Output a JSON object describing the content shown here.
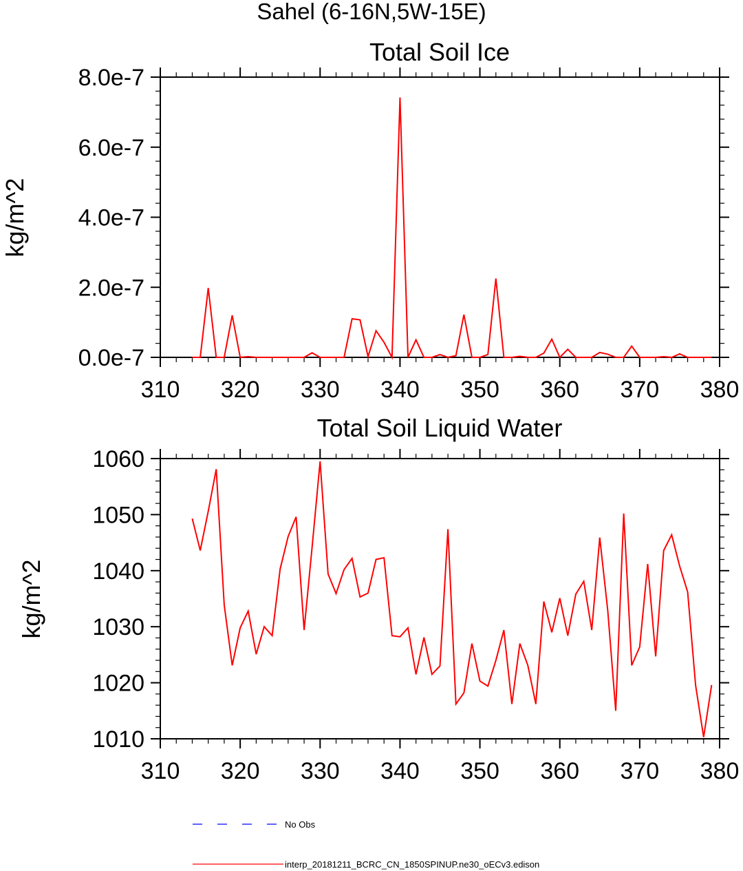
{
  "figure_title": "Sahel (6-16N,5W-15E)",
  "legend": [
    {
      "label": "No Obs",
      "color": "#0000ff",
      "style": "dashed"
    },
    {
      "label": "interp_20181211_BCRC_CN_1850SPINUP.ne30_oECv3.edison",
      "color": "#ff0000",
      "style": "solid"
    }
  ],
  "chart_data": [
    {
      "type": "line",
      "title": "Total Soil Ice",
      "xlabel": "",
      "ylabel": "kg/m^2",
      "xlim": [
        310,
        380
      ],
      "ylim": [
        0,
        8e-07
      ],
      "x_ticks": [
        310,
        320,
        330,
        340,
        350,
        360,
        370,
        380
      ],
      "x_tick_labels": [
        "310",
        "320",
        "330",
        "340",
        "350",
        "360",
        "370",
        "380"
      ],
      "y_ticks": [
        0,
        2e-07,
        4e-07,
        6e-07,
        8e-07
      ],
      "y_tick_labels": [
        "0.0e-7",
        "2.0e-7",
        "4.0e-7",
        "6.0e-7",
        "8.0e-7"
      ],
      "grid": false,
      "series": [
        {
          "color": "#ff0000",
          "x": [
            314,
            315,
            316,
            317,
            318,
            319,
            320,
            321,
            322,
            323,
            324,
            325,
            326,
            327,
            328,
            329,
            330,
            331,
            332,
            333,
            334,
            335,
            336,
            337,
            338,
            339,
            340,
            341,
            342,
            343,
            344,
            345,
            346,
            347,
            348,
            349,
            350,
            351,
            352,
            353,
            354,
            355,
            356,
            357,
            358,
            359,
            360,
            361,
            362,
            363,
            364,
            365,
            366,
            367,
            368,
            369,
            370,
            371,
            372,
            373,
            374,
            375,
            376,
            377,
            378,
            379
          ],
          "y": [
            0,
            0,
            1.98e-07,
            0,
            0,
            1.2e-07,
            0,
            2e-09,
            0,
            0,
            0,
            0,
            0,
            0,
            0,
            1.3e-08,
            0,
            0,
            0,
            0,
            1.1e-07,
            1.07e-07,
            2e-09,
            7.6e-08,
            4.3e-08,
            0,
            7.42e-07,
            0,
            5e-08,
            0,
            0,
            8e-09,
            0,
            5e-09,
            1.22e-07,
            0,
            0,
            8e-09,
            2.25e-07,
            0,
            0,
            3e-09,
            0,
            0,
            1.2e-08,
            5.2e-08,
            0,
            2.3e-08,
            0,
            0,
            0,
            1.4e-08,
            9e-09,
            0,
            0,
            3.2e-08,
            0,
            0,
            0,
            2e-09,
            0,
            1e-08,
            0,
            0,
            0,
            0
          ]
        }
      ]
    },
    {
      "type": "line",
      "title": "Total Soil Liquid Water",
      "xlabel": "",
      "ylabel": "kg/m^2",
      "xlim": [
        310,
        380
      ],
      "ylim": [
        1010,
        1060
      ],
      "x_ticks": [
        310,
        320,
        330,
        340,
        350,
        360,
        370,
        380
      ],
      "x_tick_labels": [
        "310",
        "320",
        "330",
        "340",
        "350",
        "360",
        "370",
        "380"
      ],
      "y_ticks": [
        1010,
        1020,
        1030,
        1040,
        1050,
        1060
      ],
      "y_tick_labels": [
        "1010",
        "1020",
        "1030",
        "1040",
        "1050",
        "1060"
      ],
      "grid": false,
      "series": [
        {
          "color": "#ff0000",
          "x": [
            314,
            315,
            316,
            317,
            318,
            319,
            320,
            321,
            322,
            323,
            324,
            325,
            326,
            327,
            328,
            329,
            330,
            331,
            332,
            333,
            334,
            335,
            336,
            337,
            338,
            339,
            340,
            341,
            342,
            343,
            344,
            345,
            346,
            347,
            348,
            349,
            350,
            351,
            352,
            353,
            354,
            355,
            356,
            357,
            358,
            359,
            360,
            361,
            362,
            363,
            364,
            365,
            366,
            367,
            368,
            369,
            370,
            371,
            372,
            373,
            374,
            375,
            376,
            377,
            378,
            379
          ],
          "y": [
            1049.3,
            1043.6,
            1050.6,
            1058.1,
            1033.9,
            1023.1,
            1029.8,
            1032.8,
            1025.1,
            1030.0,
            1028.4,
            1040.3,
            1046.1,
            1049.6,
            1029.4,
            1044.2,
            1059.5,
            1039.4,
            1035.9,
            1040.2,
            1042.2,
            1035.3,
            1036.0,
            1042.0,
            1042.3,
            1028.4,
            1028.2,
            1029.8,
            1021.5,
            1028.1,
            1021.5,
            1023.0,
            1047.4,
            1016.2,
            1018.2,
            1027.0,
            1020.3,
            1019.4,
            1024.0,
            1029.4,
            1016.2,
            1027.0,
            1023.1,
            1016.2,
            1034.5,
            1029.0,
            1035.1,
            1028.4,
            1035.8,
            1038.1,
            1029.4,
            1045.9,
            1032.9,
            1015.0,
            1050.2,
            1023.1,
            1026.4,
            1041.2,
            1024.7,
            1043.6,
            1046.4,
            1040.8,
            1036.2,
            1019.5,
            1010.3,
            1019.6
          ]
        }
      ]
    }
  ]
}
